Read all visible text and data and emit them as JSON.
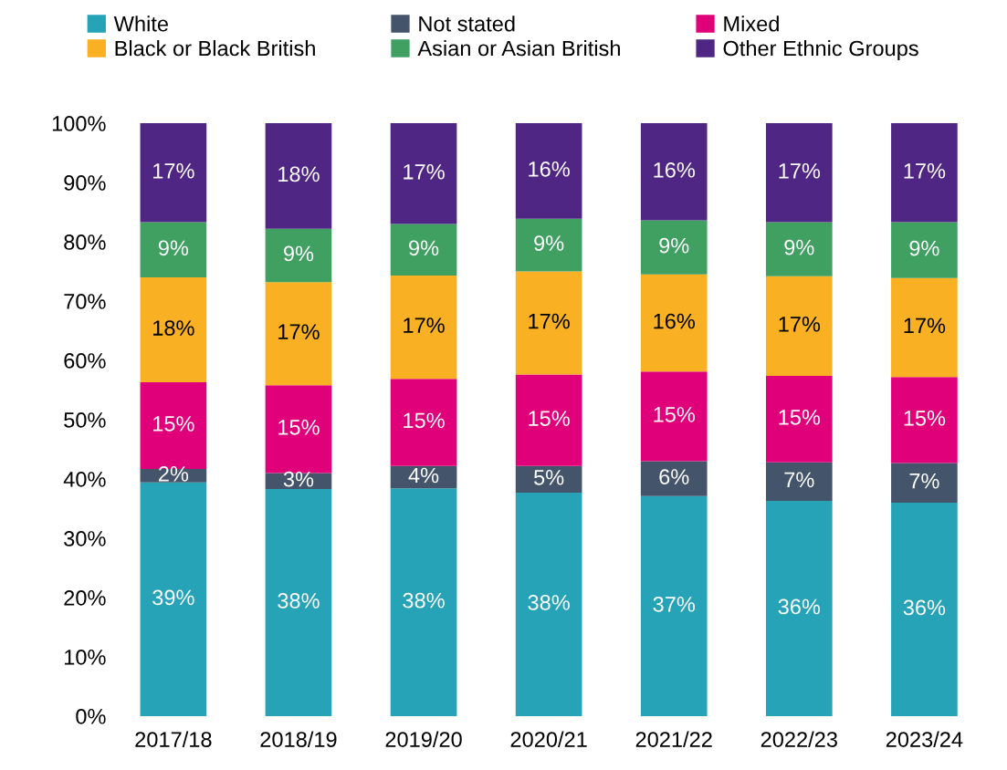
{
  "chart_data": {
    "type": "bar",
    "stacked": true,
    "categories": [
      "2017/18",
      "2018/19",
      "2019/20",
      "2020/21",
      "2021/22",
      "2022/23",
      "2023/24"
    ],
    "series": [
      {
        "name": "White",
        "color": "#27a3b8",
        "values": [
          39.4,
          38.3,
          38.4,
          37.7,
          37.1,
          36.3,
          36.0
        ],
        "value_labels": [
          "39%",
          "38%",
          "38%",
          "38%",
          "37%",
          "36%",
          "36%"
        ]
      },
      {
        "name": "Not stated",
        "color": "#44546a",
        "values": [
          2.3,
          2.7,
          3.8,
          4.5,
          5.9,
          6.5,
          6.7
        ],
        "value_labels": [
          "2%",
          "3%",
          "4%",
          "5%",
          "6%",
          "7%",
          "7%"
        ]
      },
      {
        "name": "Mixed",
        "color": "#e0007a",
        "values": [
          14.6,
          14.8,
          14.7,
          15.4,
          15.1,
          14.6,
          14.5
        ],
        "value_labels": [
          "15%",
          "15%",
          "15%",
          "15%",
          "15%",
          "15%",
          "15%"
        ]
      },
      {
        "name": "Black or Black British",
        "color": "#f9b022",
        "values": [
          17.7,
          17.4,
          17.4,
          17.4,
          16.4,
          16.8,
          16.7
        ],
        "value_labels": [
          "18%",
          "17%",
          "17%",
          "17%",
          "16%",
          "17%",
          "17%"
        ]
      },
      {
        "name": "Asian or Asian British",
        "color": "#3fa062",
        "values": [
          9.3,
          9.0,
          8.7,
          8.9,
          9.1,
          9.1,
          9.4
        ],
        "value_labels": [
          "9%",
          "9%",
          "9%",
          "9%",
          "9%",
          "9%",
          "9%"
        ]
      },
      {
        "name": "Other Ethnic Groups",
        "color": "#4f2683",
        "values": [
          16.7,
          17.8,
          17.0,
          16.1,
          16.4,
          16.7,
          16.7
        ],
        "value_labels": [
          "17%",
          "18%",
          "17%",
          "16%",
          "16%",
          "17%",
          "17%"
        ]
      }
    ],
    "ylim": [
      0,
      100
    ],
    "yticks": [
      {
        "value": 0,
        "label": "0%"
      },
      {
        "value": 10,
        "label": "10%"
      },
      {
        "value": 20,
        "label": "20%"
      },
      {
        "value": 30,
        "label": "30%"
      },
      {
        "value": 40,
        "label": "40%"
      },
      {
        "value": 50,
        "label": "50%"
      },
      {
        "value": 60,
        "label": "60%"
      },
      {
        "value": 70,
        "label": "70%"
      },
      {
        "value": 80,
        "label": "80%"
      },
      {
        "value": 90,
        "label": "90%"
      },
      {
        "value": 100,
        "label": "100%"
      }
    ],
    "grid": false,
    "legend": "top"
  }
}
